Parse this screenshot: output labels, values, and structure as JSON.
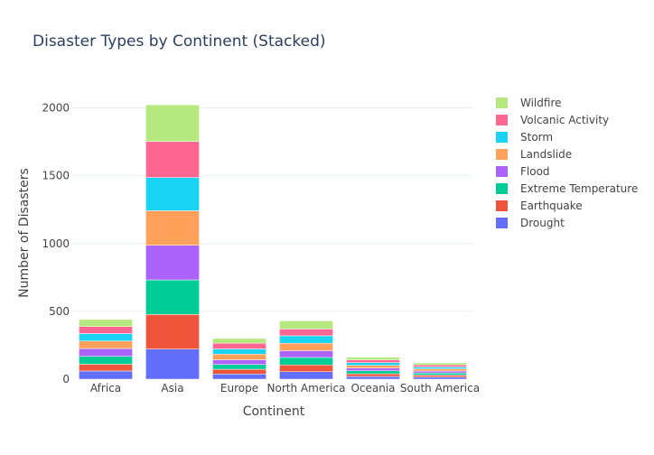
{
  "chart_data": {
    "type": "bar",
    "stacked": true,
    "title": "Disaster Types by Continent (Stacked)",
    "xlabel": "Continent",
    "ylabel": "Number of Disasters",
    "categories": [
      "Africa",
      "Asia",
      "Europe",
      "North America",
      "Oceania",
      "South America"
    ],
    "ylim": [
      0,
      2130
    ],
    "yticks": [
      0,
      500,
      1000,
      1500,
      2000
    ],
    "grid": true,
    "legend_position": "right",
    "series": [
      {
        "name": "Drought",
        "color": "#636efa",
        "values": [
          60,
          222,
          38,
          55,
          20,
          16
        ]
      },
      {
        "name": "Earthquake",
        "color": "#ef553b",
        "values": [
          50,
          255,
          35,
          50,
          20,
          14
        ]
      },
      {
        "name": "Extreme Temperature",
        "color": "#00cc96",
        "values": [
          58,
          255,
          35,
          55,
          22,
          16
        ]
      },
      {
        "name": "Flood",
        "color": "#ab63fa",
        "values": [
          58,
          255,
          35,
          50,
          20,
          14
        ]
      },
      {
        "name": "Landslide",
        "color": "#ffa15a",
        "values": [
          55,
          255,
          42,
          55,
          20,
          16
        ]
      },
      {
        "name": "Storm",
        "color": "#19d3f3",
        "values": [
          55,
          245,
          38,
          55,
          20,
          14
        ]
      },
      {
        "name": "Volcanic Activity",
        "color": "#ff6692",
        "values": [
          52,
          265,
          42,
          50,
          20,
          16
        ]
      },
      {
        "name": "Wildfire",
        "color": "#b6e880",
        "values": [
          52,
          270,
          35,
          60,
          20,
          14
        ]
      }
    ]
  }
}
